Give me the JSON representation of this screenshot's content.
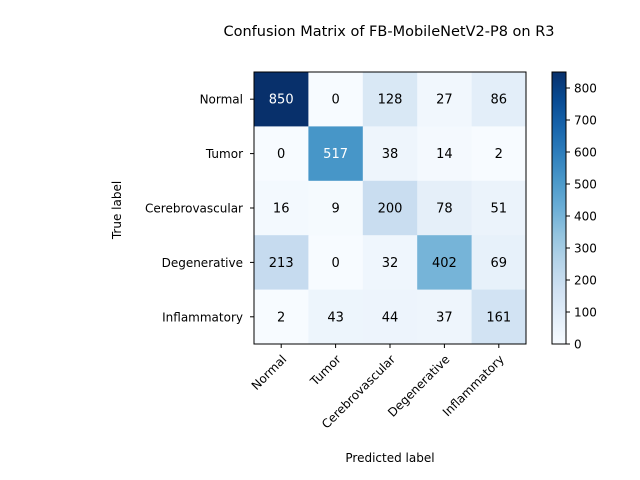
{
  "chart_data": {
    "type": "heatmap",
    "title": "Confusion Matrix of FB-MobileNetV2-P8 on R3",
    "xlabel": "Predicted label",
    "ylabel": "True label",
    "categories": [
      "Normal",
      "Tumor",
      "Cerebrovascular",
      "Degenerative",
      "Inflammatory"
    ],
    "matrix": [
      [
        850,
        0,
        128,
        27,
        86
      ],
      [
        0,
        517,
        38,
        14,
        2
      ],
      [
        16,
        9,
        200,
        78,
        51
      ],
      [
        213,
        0,
        32,
        402,
        69
      ],
      [
        2,
        43,
        44,
        37,
        161
      ]
    ],
    "colormap": "Blues",
    "colorbar": {
      "min": 0,
      "max": 850,
      "ticks": [
        0,
        100,
        200,
        300,
        400,
        500,
        600,
        700,
        800
      ]
    },
    "grid": false
  }
}
